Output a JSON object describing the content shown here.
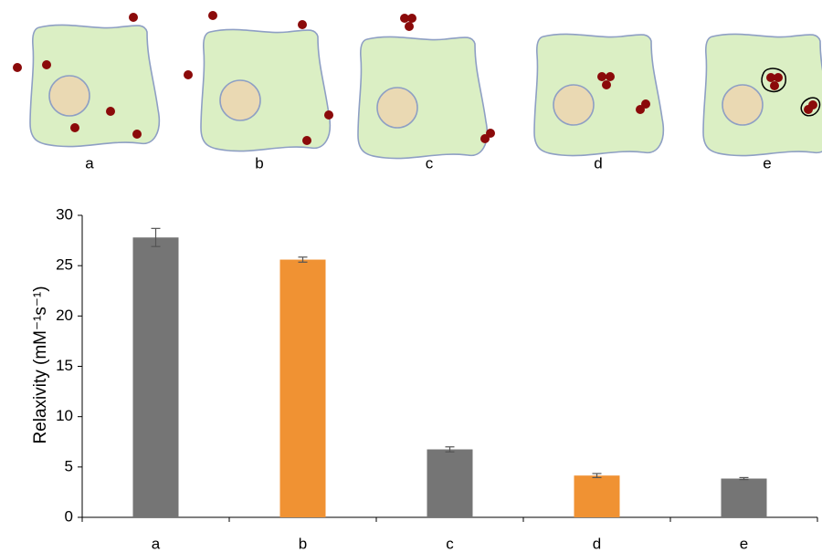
{
  "illustration": {
    "labels": [
      "a",
      "b",
      "c",
      "d",
      "e"
    ]
  },
  "chart_data": {
    "type": "bar",
    "y_label": "Relaxivity (mM⁻¹s⁻¹)",
    "categories": [
      "a",
      "b",
      "c",
      "d",
      "e"
    ],
    "values": [
      27.8,
      25.6,
      6.75,
      4.15,
      3.85
    ],
    "errors": [
      0.9,
      0.25,
      0.25,
      0.2,
      0.1
    ],
    "colors": [
      "#757575",
      "#f09233",
      "#757575",
      "#f09233",
      "#757575"
    ],
    "ylim": [
      0,
      30
    ],
    "yticks": [
      0,
      5,
      10,
      15,
      20,
      25,
      30
    ]
  }
}
